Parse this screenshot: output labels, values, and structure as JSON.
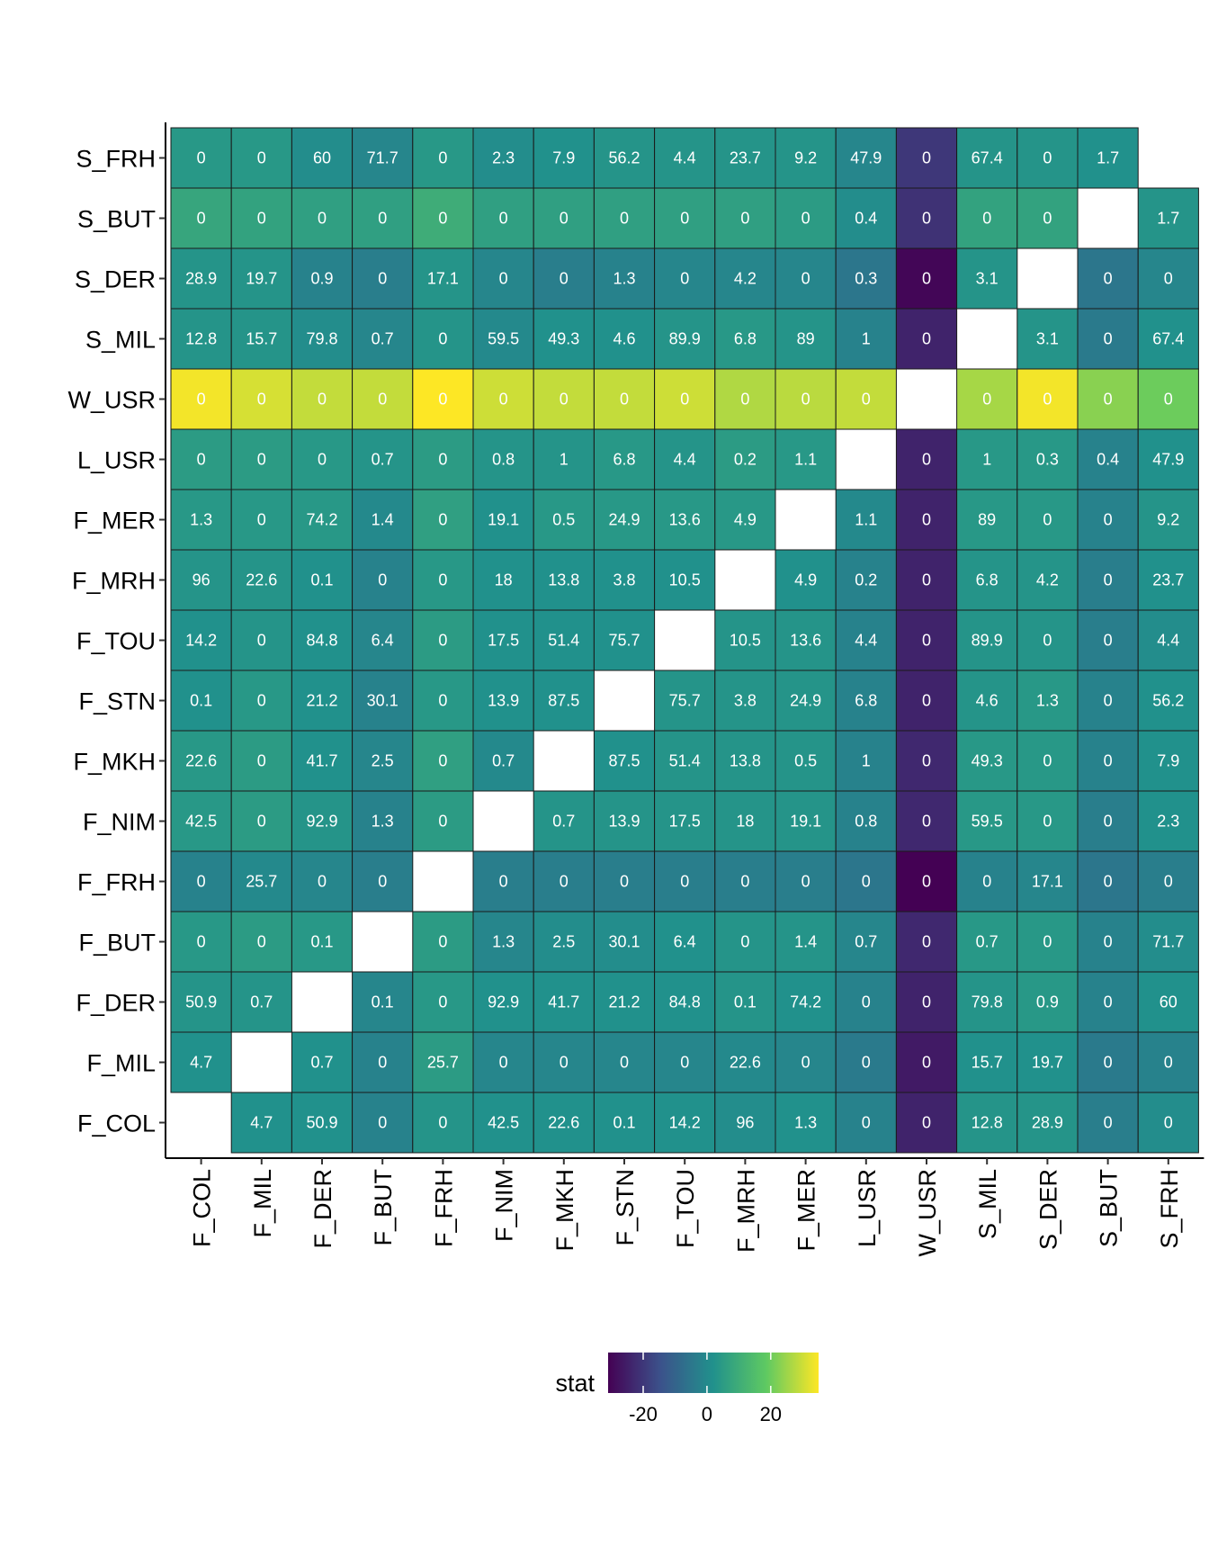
{
  "chart_data": {
    "type": "heatmap",
    "title": "",
    "xlabel": "",
    "ylabel": "",
    "x_categories": [
      "F_COL",
      "F_MIL",
      "F_DER",
      "F_BUT",
      "F_FRH",
      "F_NIM",
      "F_MKH",
      "F_STN",
      "F_TOU",
      "F_MRH",
      "F_MER",
      "L_USR",
      "W_USR",
      "S_MIL",
      "S_DER",
      "S_BUT",
      "S_FRH"
    ],
    "y_categories": [
      "S_FRH",
      "S_BUT",
      "S_DER",
      "S_MIL",
      "W_USR",
      "L_USR",
      "F_MER",
      "F_MRH",
      "F_TOU",
      "F_STN",
      "F_MKH",
      "F_NIM",
      "F_FRH",
      "F_BUT",
      "F_DER",
      "F_MIL",
      "F_COL"
    ],
    "labels": [
      [
        "0",
        "0",
        "60",
        "71.7",
        "0",
        "2.3",
        "7.9",
        "56.2",
        "4.4",
        "23.7",
        "9.2",
        "47.9",
        "0",
        "67.4",
        "0",
        "1.7",
        null
      ],
      [
        "0",
        "0",
        "0",
        "0",
        "0",
        "0",
        "0",
        "0",
        "0",
        "0",
        "0",
        "0.4",
        "0",
        "0",
        "0",
        null,
        "1.7"
      ],
      [
        "28.9",
        "19.7",
        "0.9",
        "0",
        "17.1",
        "0",
        "0",
        "1.3",
        "0",
        "4.2",
        "0",
        "0.3",
        "0",
        "3.1",
        null,
        "0",
        "0"
      ],
      [
        "12.8",
        "15.7",
        "79.8",
        "0.7",
        "0",
        "59.5",
        "49.3",
        "4.6",
        "89.9",
        "6.8",
        "89",
        "1",
        "0",
        null,
        "3.1",
        "0",
        "67.4"
      ],
      [
        "0",
        "0",
        "0",
        "0",
        "0",
        "0",
        "0",
        "0",
        "0",
        "0",
        "0",
        "0",
        null,
        "0",
        "0",
        "0",
        "0"
      ],
      [
        "0",
        "0",
        "0",
        "0.7",
        "0",
        "0.8",
        "1",
        "6.8",
        "4.4",
        "0.2",
        "1.1",
        null,
        "0",
        "1",
        "0.3",
        "0.4",
        "47.9"
      ],
      [
        "1.3",
        "0",
        "74.2",
        "1.4",
        "0",
        "19.1",
        "0.5",
        "24.9",
        "13.6",
        "4.9",
        null,
        "1.1",
        "0",
        "89",
        "0",
        "0",
        "9.2"
      ],
      [
        "96",
        "22.6",
        "0.1",
        "0",
        "0",
        "18",
        "13.8",
        "3.8",
        "10.5",
        null,
        "4.9",
        "0.2",
        "0",
        "6.8",
        "4.2",
        "0",
        "23.7"
      ],
      [
        "14.2",
        "0",
        "84.8",
        "6.4",
        "0",
        "17.5",
        "51.4",
        "75.7",
        null,
        "10.5",
        "13.6",
        "4.4",
        "0",
        "89.9",
        "0",
        "0",
        "4.4"
      ],
      [
        "0.1",
        "0",
        "21.2",
        "30.1",
        "0",
        "13.9",
        "87.5",
        null,
        "75.7",
        "3.8",
        "24.9",
        "6.8",
        "0",
        "4.6",
        "1.3",
        "0",
        "56.2"
      ],
      [
        "22.6",
        "0",
        "41.7",
        "2.5",
        "0",
        "0.7",
        null,
        "87.5",
        "51.4",
        "13.8",
        "0.5",
        "1",
        "0",
        "49.3",
        "0",
        "0",
        "7.9"
      ],
      [
        "42.5",
        "0",
        "92.9",
        "1.3",
        "0",
        null,
        "0.7",
        "13.9",
        "17.5",
        "18",
        "19.1",
        "0.8",
        "0",
        "59.5",
        "0",
        "0",
        "2.3"
      ],
      [
        "0",
        "25.7",
        "0",
        "0",
        null,
        "0",
        "0",
        "0",
        "0",
        "0",
        "0",
        "0",
        "0",
        "0",
        "17.1",
        "0",
        "0"
      ],
      [
        "0",
        "0",
        "0.1",
        null,
        "0",
        "1.3",
        "2.5",
        "30.1",
        "6.4",
        "0",
        "1.4",
        "0.7",
        "0",
        "0.7",
        "0",
        "0",
        "71.7"
      ],
      [
        "50.9",
        "0.7",
        null,
        "0.1",
        "0",
        "92.9",
        "41.7",
        "21.2",
        "84.8",
        "0.1",
        "74.2",
        "0",
        "0",
        "79.8",
        "0.9",
        "0",
        "60"
      ],
      [
        "4.7",
        null,
        "0.7",
        "0",
        "25.7",
        "0",
        "0",
        "0",
        "0",
        "22.6",
        "0",
        "0",
        "0",
        "15.7",
        "19.7",
        "0",
        "0"
      ],
      [
        null,
        "4.7",
        "50.9",
        "0",
        "0",
        "42.5",
        "22.6",
        "0.1",
        "14.2",
        "96",
        "1.3",
        "0",
        "0",
        "12.8",
        "28.9",
        "0",
        "0"
      ]
    ],
    "stat": [
      [
        4,
        4,
        1,
        -1,
        4,
        1,
        2,
        3,
        3,
        3,
        3,
        -1,
        -20,
        3,
        3,
        2,
        null
      ],
      [
        8,
        7,
        6,
        6,
        10,
        6,
        6,
        6,
        6,
        6,
        5,
        1,
        -21,
        7,
        7,
        null,
        3
      ],
      [
        3,
        3,
        -2,
        -3,
        3,
        -1,
        -3,
        -2,
        -1,
        -1,
        -1,
        -5,
        -30,
        3,
        null,
        -5,
        -1
      ],
      [
        3,
        3,
        1,
        -1,
        3,
        0,
        2,
        2,
        3,
        4,
        3,
        -2,
        -24,
        null,
        3,
        -4,
        2
      ],
      [
        34,
        31,
        29,
        29,
        35,
        30,
        29,
        29,
        30,
        27,
        28,
        29,
        null,
        26,
        34,
        23,
        20
      ],
      [
        5,
        5,
        4,
        3,
        5,
        3,
        3,
        4,
        3,
        5,
        4,
        null,
        -24,
        4,
        4,
        -2,
        2
      ],
      [
        4,
        4,
        4,
        0,
        6,
        2,
        4,
        4,
        4,
        4,
        null,
        0,
        -24,
        4,
        4,
        -2,
        3
      ],
      [
        3,
        3,
        2,
        -2,
        4,
        2,
        2,
        2,
        2,
        null,
        2,
        -2,
        -24,
        3,
        3,
        -3,
        2
      ],
      [
        2,
        3,
        2,
        -1,
        5,
        2,
        2,
        2,
        null,
        3,
        3,
        -2,
        -24,
        3,
        3,
        -3,
        1
      ],
      [
        2,
        4,
        2,
        -2,
        4,
        2,
        2,
        null,
        3,
        3,
        3,
        -2,
        -24,
        3,
        4,
        -2,
        2
      ],
      [
        4,
        5,
        2,
        -1,
        6,
        0,
        null,
        2,
        3,
        3,
        3,
        -2,
        -23,
        4,
        4,
        -2,
        2
      ],
      [
        4,
        5,
        3,
        -2,
        5,
        null,
        3,
        3,
        3,
        3,
        3,
        -2,
        -23,
        4,
        4,
        -3,
        2
      ],
      [
        -2,
        0,
        -1,
        -3,
        null,
        -3,
        -3,
        -3,
        -3,
        -3,
        -3,
        -5,
        -31,
        -2,
        -1,
        -5,
        -3
      ],
      [
        4,
        5,
        4,
        null,
        5,
        -1,
        1,
        1,
        2,
        3,
        3,
        -1,
        -23,
        4,
        4,
        -2,
        1
      ],
      [
        3,
        3,
        null,
        -1,
        4,
        2,
        2,
        2,
        2,
        3,
        2,
        -2,
        -24,
        3,
        4,
        -2,
        2
      ],
      [
        2,
        null,
        2,
        -2,
        5,
        -1,
        -1,
        -1,
        -1,
        0,
        -1,
        -4,
        -26,
        2,
        2,
        -4,
        -2
      ],
      [
        null,
        2,
        2,
        -2,
        3,
        2,
        2,
        2,
        2,
        1,
        2,
        -2,
        -24,
        3,
        3,
        -3,
        1
      ]
    ],
    "color_scale": {
      "name": "viridis",
      "stops": [
        "#440154",
        "#3b528b",
        "#21918c",
        "#5ec962",
        "#fde725"
      ],
      "domain": [
        -31,
        35
      ]
    },
    "legend": {
      "title": "stat",
      "placement": "bottom",
      "ticks": [
        -20,
        0,
        20
      ],
      "tick_labels": [
        "-20",
        "0",
        "20"
      ]
    },
    "grid": false
  }
}
